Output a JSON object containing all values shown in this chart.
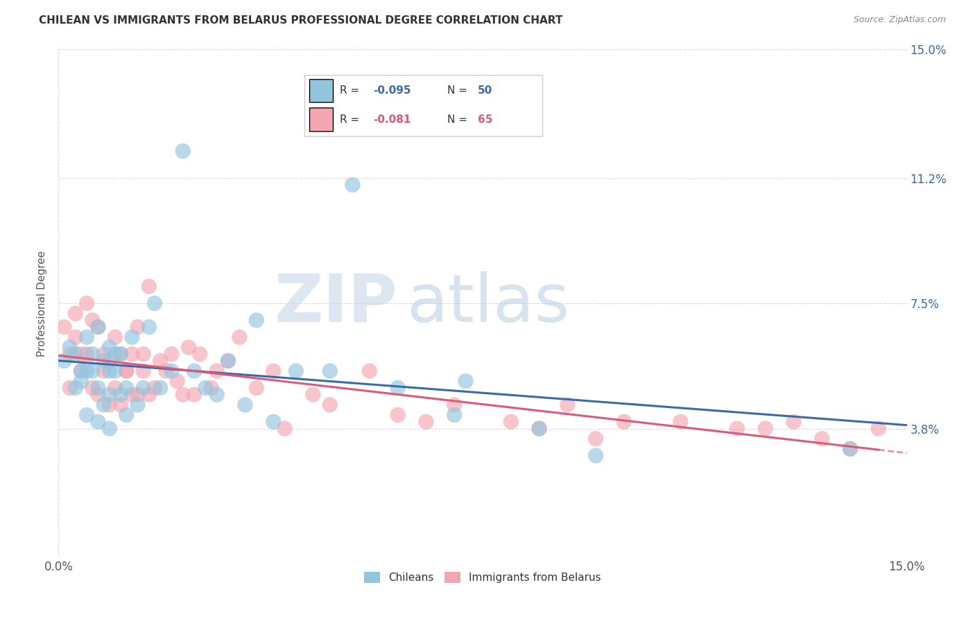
{
  "title": "CHILEAN VS IMMIGRANTS FROM BELARUS PROFESSIONAL DEGREE CORRELATION CHART",
  "source": "Source: ZipAtlas.com",
  "ylabel": "Professional Degree",
  "xlim": [
    0.0,
    0.15
  ],
  "ylim": [
    0.0,
    0.15
  ],
  "grid_tick_values": [
    0.038,
    0.075,
    0.112,
    0.15
  ],
  "right_tick_labels": [
    "3.8%",
    "7.5%",
    "11.2%",
    "15.0%"
  ],
  "xtick_values": [
    0.0,
    0.15
  ],
  "xtick_labels": [
    "0.0%",
    "15.0%"
  ],
  "color_blue": "#92c5de",
  "color_pink": "#f4a6b0",
  "color_blue_line": "#3a6aaa",
  "color_pink_line": "#e05878",
  "color_blue_text": "#3a6aaa",
  "color_pink_text": "#e05878",
  "watermark_zip": "ZIP",
  "watermark_atlas": "atlas",
  "legend_box_color": "#ffffff",
  "legend_border_color": "#cccccc",
  "background_color": "#ffffff",
  "grid_color": "#d8d8e8",
  "chileans_x": [
    0.001,
    0.002,
    0.003,
    0.003,
    0.004,
    0.004,
    0.005,
    0.005,
    0.005,
    0.006,
    0.006,
    0.007,
    0.007,
    0.007,
    0.008,
    0.008,
    0.009,
    0.009,
    0.009,
    0.009,
    0.01,
    0.01,
    0.011,
    0.011,
    0.012,
    0.012,
    0.013,
    0.014,
    0.015,
    0.016,
    0.017,
    0.018,
    0.02,
    0.022,
    0.024,
    0.026,
    0.028,
    0.03,
    0.033,
    0.035,
    0.038,
    0.042,
    0.048,
    0.052,
    0.06,
    0.07,
    0.072,
    0.085,
    0.095,
    0.14
  ],
  "chileans_y": [
    0.058,
    0.062,
    0.06,
    0.05,
    0.052,
    0.055,
    0.065,
    0.055,
    0.042,
    0.06,
    0.055,
    0.068,
    0.05,
    0.04,
    0.058,
    0.045,
    0.062,
    0.055,
    0.048,
    0.038,
    0.055,
    0.06,
    0.06,
    0.048,
    0.05,
    0.042,
    0.065,
    0.045,
    0.05,
    0.068,
    0.075,
    0.05,
    0.055,
    0.12,
    0.055,
    0.05,
    0.048,
    0.058,
    0.045,
    0.07,
    0.04,
    0.055,
    0.055,
    0.11,
    0.05,
    0.042,
    0.052,
    0.038,
    0.03,
    0.032
  ],
  "belarus_x": [
    0.001,
    0.002,
    0.002,
    0.003,
    0.003,
    0.004,
    0.004,
    0.005,
    0.005,
    0.006,
    0.006,
    0.007,
    0.007,
    0.008,
    0.008,
    0.009,
    0.009,
    0.01,
    0.01,
    0.011,
    0.011,
    0.012,
    0.012,
    0.013,
    0.013,
    0.014,
    0.014,
    0.015,
    0.015,
    0.016,
    0.016,
    0.017,
    0.018,
    0.019,
    0.02,
    0.021,
    0.022,
    0.023,
    0.024,
    0.025,
    0.027,
    0.028,
    0.03,
    0.032,
    0.035,
    0.038,
    0.04,
    0.045,
    0.048,
    0.055,
    0.06,
    0.065,
    0.07,
    0.08,
    0.085,
    0.09,
    0.095,
    0.1,
    0.11,
    0.12,
    0.125,
    0.13,
    0.135,
    0.14,
    0.145
  ],
  "belarus_y": [
    0.068,
    0.06,
    0.05,
    0.065,
    0.072,
    0.055,
    0.06,
    0.075,
    0.06,
    0.07,
    0.05,
    0.068,
    0.048,
    0.06,
    0.055,
    0.058,
    0.045,
    0.065,
    0.05,
    0.06,
    0.045,
    0.055,
    0.055,
    0.06,
    0.048,
    0.068,
    0.048,
    0.055,
    0.06,
    0.08,
    0.048,
    0.05,
    0.058,
    0.055,
    0.06,
    0.052,
    0.048,
    0.062,
    0.048,
    0.06,
    0.05,
    0.055,
    0.058,
    0.065,
    0.05,
    0.055,
    0.038,
    0.048,
    0.045,
    0.055,
    0.042,
    0.04,
    0.045,
    0.04,
    0.038,
    0.045,
    0.035,
    0.04,
    0.04,
    0.038,
    0.038,
    0.04,
    0.035,
    0.032,
    0.038
  ]
}
